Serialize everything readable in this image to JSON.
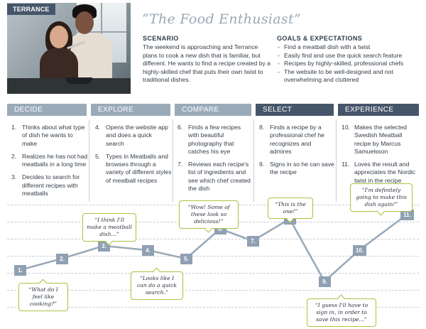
{
  "persona": {
    "badge": "TERRANCE",
    "quote": "“The Food Enthusiast”"
  },
  "scenario": {
    "title": "SCENARIO",
    "text": "The weekend is approaching and Terrance plans to cook a new dish that is familiar, but different. He wants to find a recipe created by a highly-skilled chef that puts their own twist to traditional dishes."
  },
  "goals": {
    "title": "GOALS & EXPECTATIONS",
    "items": [
      "Find a meatball dish with a twist",
      "Easily find and use the quick search feature",
      "Recipes by highly-skilled, professional chefs",
      "The website to be well-designed and not overwhelming and cluttered"
    ]
  },
  "phases": [
    {
      "label": "DECIDE",
      "steps": [
        {
          "num": "1.",
          "text": "Thinks about what type of dish he wants to make"
        },
        {
          "num": "2.",
          "text": "Realizes he has not had meatballs in a long time"
        },
        {
          "num": "3.",
          "text": "Decides to search for different recipes with meatballs"
        }
      ]
    },
    {
      "label": "EXPLORE",
      "steps": [
        {
          "num": "4.",
          "text": "Opens the website app and does a quick search"
        },
        {
          "num": "5.",
          "text": "Types in Meatballs and browses through a variety of different styles of meatball recipes"
        }
      ]
    },
    {
      "label": "COMPARE",
      "steps": [
        {
          "num": "6.",
          "text": "Finds a few recipes with beautiful photography that catches his eye"
        },
        {
          "num": "7.",
          "text": "Reviews each recipe's list of ingredients and see which chef created the dish"
        }
      ]
    },
    {
      "label": "SELECT",
      "steps": [
        {
          "num": "8.",
          "text": "Finds a recipe by a professional chef he recognizes and admires"
        },
        {
          "num": "9.",
          "text": "Signs in so he can save the recipe"
        }
      ]
    },
    {
      "label": "EXPERIENCE",
      "steps": [
        {
          "num": "10.",
          "text": "Makes the selected Swedish Meatball recipe by Marcus Samuelsson"
        },
        {
          "num": "11.",
          "text": "Loves the result and appreciates the Nordic twist in the recipe"
        }
      ]
    }
  ],
  "journey": {
    "points": [
      "1.",
      "2.",
      "3.",
      "4.",
      "5.",
      "6.",
      "7.",
      "8.",
      "9.",
      "10.",
      "11."
    ],
    "quotes": [
      "“What do I feel like cooking?”",
      "“I think I'll make a meatball dish...”",
      "“Looks like I can do a quick search.”",
      "“Wow! Some of these look so delicious!”",
      "“This is the one!”",
      "“I guess I'll have to sign in, in order to save this recipe...”",
      "“I'm definitely going to make this dish again!”"
    ]
  },
  "colors": {
    "phase_light": "#9aaab9",
    "phase_dark": "#46566a",
    "journey_line": "#9aaab9",
    "quote_border": "#a9c23f"
  }
}
